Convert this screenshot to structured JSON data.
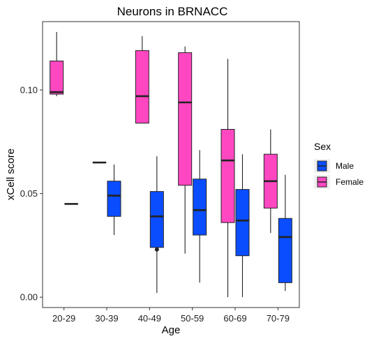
{
  "chart_data": {
    "type": "boxplot",
    "title": "Neurons in BRNACC",
    "xlabel": "Age",
    "ylabel": "xCell score",
    "categories": [
      "20-29",
      "30-39",
      "40-49",
      "50-59",
      "60-69",
      "70-79"
    ],
    "ylim": [
      -0.005,
      0.133
    ],
    "yticks": [
      0.0,
      0.05,
      0.1
    ],
    "ytick_labels": [
      "0.00",
      "0.05",
      "0.10"
    ],
    "grid": false,
    "legend": {
      "title": "Sex",
      "placement": "right",
      "entries": [
        {
          "label": "Male",
          "color": "#0A4DFF"
        },
        {
          "label": "Female",
          "color": "#FF47C2"
        }
      ]
    },
    "series": [
      {
        "name": "Male",
        "color": "#0A4DFF",
        "boxes": [
          {
            "category": "20-29",
            "min": 0.045,
            "q1": 0.045,
            "median": 0.045,
            "q3": 0.045,
            "max": 0.045,
            "outliers": []
          },
          {
            "category": "30-39",
            "min": 0.03,
            "q1": 0.039,
            "median": 0.049,
            "q3": 0.056,
            "max": 0.064,
            "outliers": []
          },
          {
            "category": "40-49",
            "min": 0.002,
            "q1": 0.024,
            "median": 0.039,
            "q3": 0.051,
            "max": 0.068,
            "outliers": [
              0.023
            ]
          },
          {
            "category": "50-59",
            "min": 0.007,
            "q1": 0.03,
            "median": 0.042,
            "q3": 0.057,
            "max": 0.071,
            "outliers": []
          },
          {
            "category": "60-69",
            "min": 0.0,
            "q1": 0.02,
            "median": 0.037,
            "q3": 0.052,
            "max": 0.069,
            "outliers": []
          },
          {
            "category": "70-79",
            "min": 0.003,
            "q1": 0.007,
            "median": 0.029,
            "q3": 0.038,
            "max": 0.059,
            "outliers": []
          }
        ]
      },
      {
        "name": "Female",
        "color": "#FF47C2",
        "boxes": [
          {
            "category": "20-29",
            "min": 0.097,
            "q1": 0.098,
            "median": 0.099,
            "q3": 0.114,
            "max": 0.128,
            "outliers": []
          },
          {
            "category": "30-39",
            "min": 0.065,
            "q1": 0.065,
            "median": 0.065,
            "q3": 0.065,
            "max": 0.065,
            "outliers": []
          },
          {
            "category": "40-49",
            "min": 0.084,
            "q1": 0.084,
            "median": 0.097,
            "q3": 0.119,
            "max": 0.126,
            "outliers": []
          },
          {
            "category": "50-59",
            "min": 0.021,
            "q1": 0.054,
            "median": 0.094,
            "q3": 0.118,
            "max": 0.121,
            "outliers": []
          },
          {
            "category": "60-69",
            "min": 0.0,
            "q1": 0.036,
            "median": 0.066,
            "q3": 0.081,
            "max": 0.115,
            "outliers": []
          },
          {
            "category": "70-79",
            "min": 0.031,
            "q1": 0.043,
            "median": 0.056,
            "q3": 0.069,
            "max": 0.081,
            "outliers": []
          }
        ]
      }
    ]
  }
}
